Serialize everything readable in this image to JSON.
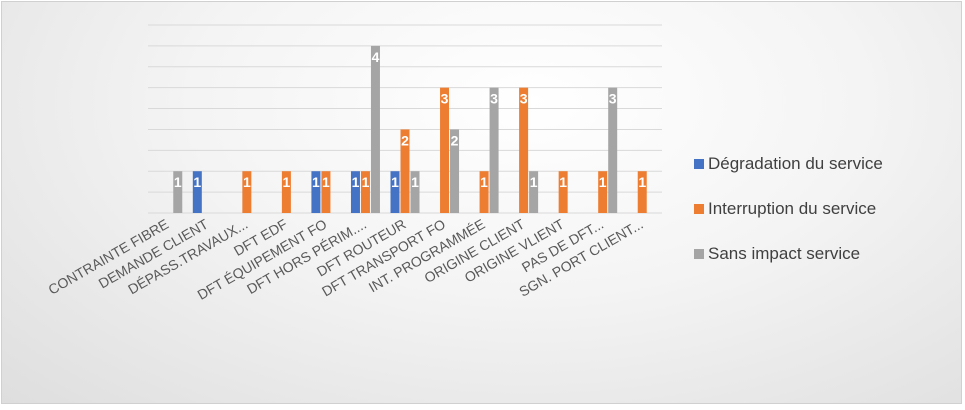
{
  "chart_data": {
    "type": "bar",
    "categories": [
      "CONTRAINTE FIBRE",
      "DEMANDE  CLIENT",
      "DÉPASS.TRAVAUX...",
      "DFT EDF",
      "DFT ÉQUIPEMENT FO",
      "DFT HORS PÉRIM....",
      "DFT ROUTEUR",
      "DFT TRANSPORT FO",
      "INT. PROGRAMMÉE",
      "ORIGINE CLIENT",
      "ORIGINE VLIENT",
      "PAS DE DFT...",
      "SGN. PORT CLIENT..."
    ],
    "series": [
      {
        "name": "Dégradation du service",
        "color": "#4472C4",
        "values": [
          null,
          1,
          null,
          null,
          1,
          1,
          1,
          null,
          null,
          null,
          null,
          null,
          null
        ]
      },
      {
        "name": "Interruption du service",
        "color": "#ED7D31",
        "values": [
          null,
          null,
          1,
          1,
          1,
          1,
          2,
          3,
          1,
          3,
          1,
          1,
          1
        ]
      },
      {
        "name": "Sans impact service",
        "color": "#A5A5A5",
        "values": [
          1,
          null,
          null,
          null,
          null,
          4,
          1,
          2,
          3,
          1,
          null,
          3,
          null
        ]
      }
    ],
    "ylim": [
      0,
      4.5
    ],
    "grid": true,
    "legend": "right"
  }
}
